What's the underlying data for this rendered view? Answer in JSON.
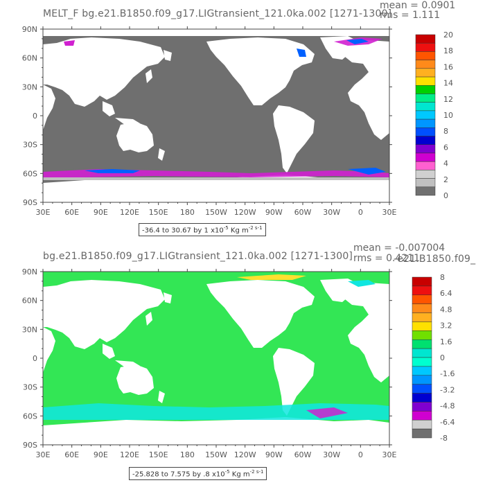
{
  "panels": [
    {
      "title": "MELT_F  bg.e21.B1850.f09_g17.LIGtransient_121.0ka.002  [1271-1300]",
      "mean": "mean = 0.0901",
      "rms": "rms = 1.111",
      "range": "-36.4 to 30.67 by 1 x10",
      "range_exp": "-5",
      "range_units": " Kg m",
      "range_units_exp": "-2 s-1",
      "colorbar": {
        "labels": [
          "20",
          "18",
          "16",
          "14",
          "12",
          "10",
          "8",
          "6",
          "4",
          "2",
          "0"
        ],
        "colors": [
          "#c80000",
          "#ee1010",
          "#ff5500",
          "#ff8a1a",
          "#ffb020",
          "#ffe000",
          "#00d000",
          "#00ee88",
          "#00e6d0",
          "#00c8ff",
          "#0096ff",
          "#0050ff",
          "#0000d0",
          "#8000d0",
          "#d000d0",
          "#ff60d0",
          "#d0d0d0",
          "#c0c0c0",
          "#707070"
        ]
      }
    },
    {
      "title": "bg.e21.B1850.f09_g17.LIGtransient_121.0ka.002  [1271-1300]",
      "overlap_text": "-e21.B1850.f09_",
      "mean": "mean = -0.007004",
      "rms": "rms = 0.4211",
      "range": "-25.828 to 7.575 by .8 x10",
      "range_exp": "-5",
      "range_units": " Kg m",
      "range_units_exp": "-2 s-1",
      "colorbar": {
        "labels": [
          "8",
          "6.4",
          "4.8",
          "3.2",
          "1.6",
          "0",
          "-1.6",
          "-3.2",
          "-4.8",
          "-6.4",
          "-8"
        ],
        "colors": [
          "#c80000",
          "#ee1010",
          "#ff5500",
          "#ff8a1a",
          "#ffb020",
          "#ffe000",
          "#70e000",
          "#00e070",
          "#00e6d0",
          "#00ffd0",
          "#00c8ff",
          "#0096ff",
          "#0050ff",
          "#0000d0",
          "#8000d0",
          "#d000d0",
          "#d0d0d0",
          "#707070"
        ]
      }
    }
  ],
  "lat_labels": [
    "90N",
    "60N",
    "30N",
    "0",
    "30S",
    "60S",
    "90S"
  ],
  "lon_labels": [
    "30E",
    "60E",
    "90E",
    "120E",
    "150E",
    "180",
    "150W",
    "120W",
    "90W",
    "60W",
    "30W",
    "0",
    "30E"
  ],
  "colors": {
    "ocean_top": "#6f6f6f",
    "land": "#ffffff",
    "ocean_bottom": "#33e655",
    "melt_magenta": "#d020d0",
    "melt_blue": "#0060ff",
    "cyan_band": "#10e6e0",
    "ice_yellow": "#ffe030"
  }
}
